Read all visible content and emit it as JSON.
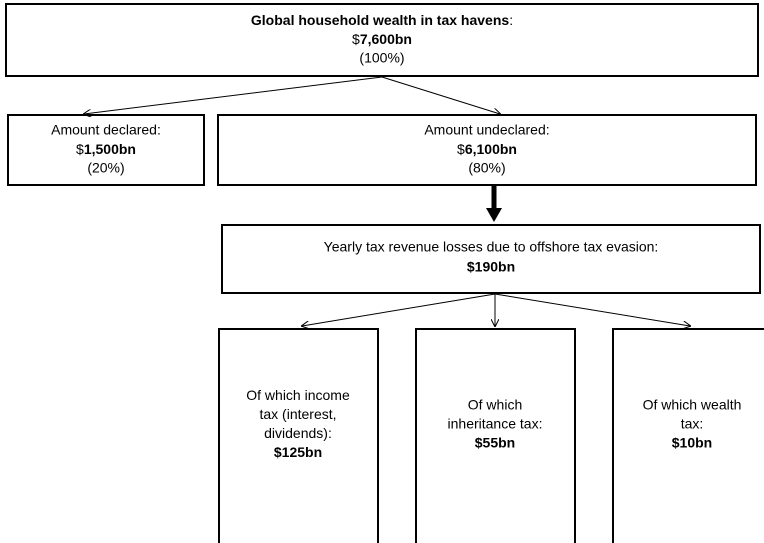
{
  "nodes": [
    {
      "title": "Global household wealth in tax havens",
      "title_suffix": ":",
      "currency": "$",
      "amount": "7,600bn",
      "share": "(100%)"
    },
    {
      "title": "Amount declared:",
      "currency": "$",
      "amount": "1,500bn",
      "share": "(20%)"
    },
    {
      "title": "Amount undeclared:",
      "currency": "$",
      "amount": "6,100bn",
      "share": "(80%)"
    },
    {
      "title": "Yearly tax revenue losses due to offshore tax evasion:",
      "amount": "$190bn"
    },
    {
      "lines": [
        "Of which income",
        "tax (interest,",
        "dividends):"
      ],
      "amount": "$125bn"
    },
    {
      "lines": [
        "Of which",
        "inheritance tax:"
      ],
      "amount": "$55bn"
    },
    {
      "lines": [
        "Of which wealth",
        "tax:"
      ],
      "amount": "$10bn"
    }
  ]
}
